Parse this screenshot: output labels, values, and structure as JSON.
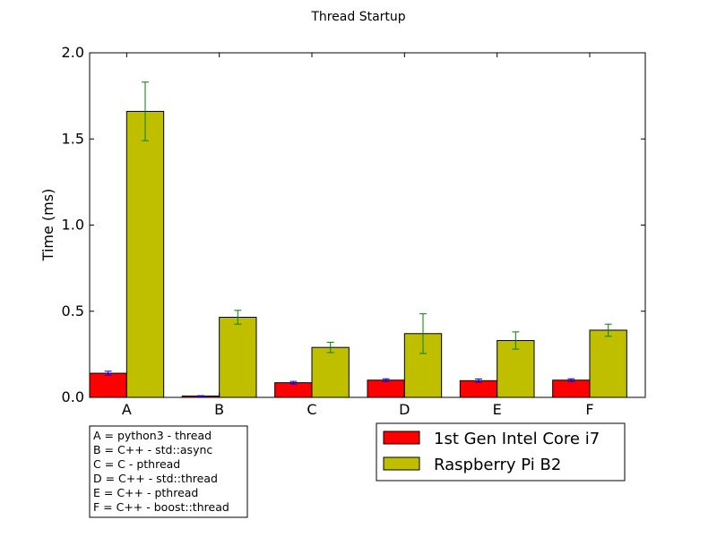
{
  "chart_data": {
    "type": "bar",
    "title": "Thread Startup",
    "xlabel": "",
    "ylabel": "Time (ms)",
    "ylim": [
      0,
      2.0
    ],
    "yticks": [
      "0.0",
      "0.5",
      "1.0",
      "1.5",
      "2.0"
    ],
    "categories": [
      "A",
      "B",
      "C",
      "D",
      "E",
      "F"
    ],
    "series": [
      {
        "name": "1st Gen Intel Core i7",
        "color": "#ff0000",
        "error_color": "#0000ff",
        "values": [
          0.14,
          0.008,
          0.085,
          0.1,
          0.097,
          0.1
        ],
        "errors": [
          0.012,
          0.002,
          0.008,
          0.008,
          0.01,
          0.008
        ]
      },
      {
        "name": "Raspberry Pi B2",
        "color": "#bfbf00",
        "error_color": "#008000",
        "values": [
          1.66,
          0.465,
          0.29,
          0.37,
          0.33,
          0.39
        ],
        "errors": [
          0.17,
          0.04,
          0.03,
          0.115,
          0.05,
          0.035
        ]
      }
    ],
    "grid": false,
    "legend_position": "bottom-right",
    "category_key": [
      "A = python3 - thread",
      "B = C++ - std::async",
      "C = C - pthread",
      "D = C++ - std::thread",
      "E = C++ - pthread",
      "F = C++ - boost::thread"
    ]
  }
}
